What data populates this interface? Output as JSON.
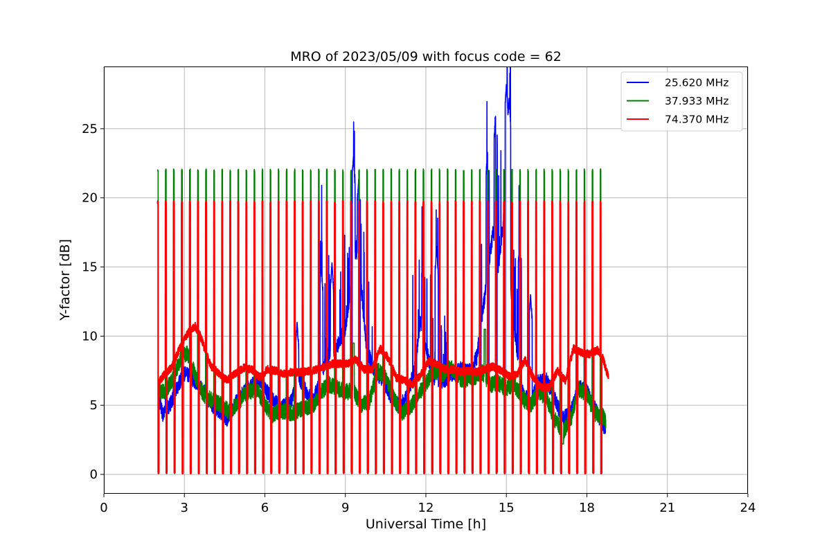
{
  "chart_data": {
    "type": "line",
    "title": "MRO of 2023/05/09 with focus code = 62",
    "xlabel": "Universal Time [h]",
    "ylabel": "Y-factor [dB]",
    "xlim": [
      0,
      24
    ],
    "ylim": [
      -1.4,
      29.5
    ],
    "xticks": [
      0,
      3,
      6,
      9,
      12,
      15,
      18,
      21,
      24
    ],
    "yticks": [
      0,
      5,
      10,
      15,
      20,
      25
    ],
    "grid": true,
    "legend_position": "top-right",
    "calibration": {
      "start": 2.0,
      "end": 18.5,
      "count": 56,
      "peak_values": {
        "25.620 MHz": 19.8,
        "37.933 MHz": 22.1,
        "74.370 MHz": 19.8
      }
    },
    "series": [
      {
        "name": "25.620 MHz",
        "color": "#0000ff",
        "x": [
          2.0,
          2.2,
          2.5,
          2.8,
          3.0,
          3.2,
          3.5,
          3.8,
          4.0,
          4.3,
          4.6,
          5.0,
          5.4,
          5.8,
          6.2,
          6.6,
          7.0,
          7.2,
          7.5,
          7.8,
          8.1,
          8.4,
          8.7,
          9.0,
          9.2,
          9.4,
          9.6,
          9.8,
          10.1,
          10.4,
          10.7,
          11.0,
          11.3,
          11.6,
          11.8,
          12.0,
          12.2,
          12.4,
          12.7,
          13.0,
          13.3,
          13.6,
          13.9,
          14.1,
          14.3,
          14.5,
          14.7,
          14.9,
          15.1,
          15.3,
          15.6,
          15.9,
          16.2,
          16.5,
          16.8,
          17.1,
          17.4,
          17.7,
          18.0,
          18.3,
          18.6,
          18.7
        ],
        "values": [
          5.8,
          4.3,
          5.2,
          6.6,
          7.3,
          7.1,
          6.5,
          5.8,
          5.0,
          4.6,
          4.0,
          5.5,
          6.3,
          6.9,
          5.6,
          4.8,
          5.3,
          7.2,
          6.1,
          5.3,
          7.2,
          8.8,
          9.3,
          10.6,
          13.5,
          16.5,
          13.2,
          9.0,
          7.4,
          6.9,
          5.6,
          4.9,
          5.6,
          7.8,
          11.2,
          9.2,
          7.6,
          6.6,
          6.8,
          7.3,
          7.6,
          7.4,
          8.5,
          11.5,
          14.5,
          17.5,
          15.0,
          18.5,
          15.0,
          10.5,
          6.0,
          5.0,
          6.8,
          6.8,
          5.5,
          4.0,
          4.5,
          6.3,
          6.0,
          4.8,
          3.5,
          3.5
        ],
        "spikes": [
          [
            7.2,
            11.0
          ],
          [
            8.1,
            15.2
          ],
          [
            8.5,
            15.3
          ],
          [
            9.3,
            23.0
          ],
          [
            9.5,
            21.5
          ],
          [
            11.9,
            16.0
          ],
          [
            12.4,
            16.5
          ],
          [
            14.3,
            23.4
          ],
          [
            14.6,
            26.0
          ],
          [
            15.0,
            28.2
          ],
          [
            15.1,
            27.2
          ],
          [
            15.5,
            17.0
          ],
          [
            15.9,
            13.0
          ]
        ]
      },
      {
        "name": "37.933 MHz",
        "color": "#008000",
        "x": [
          2.0,
          2.3,
          2.6,
          2.9,
          3.1,
          3.3,
          3.5,
          3.8,
          4.1,
          4.4,
          4.7,
          5.0,
          5.3,
          5.7,
          6.0,
          6.3,
          6.6,
          7.0,
          7.4,
          7.8,
          8.1,
          8.4,
          8.7,
          9.0,
          9.3,
          9.6,
          9.9,
          10.2,
          10.5,
          10.8,
          11.1,
          11.4,
          11.7,
          12.0,
          12.3,
          12.6,
          12.9,
          13.2,
          13.5,
          13.8,
          14.1,
          14.4,
          14.7,
          15.0,
          15.3,
          15.6,
          15.9,
          16.2,
          16.5,
          16.8,
          17.1,
          17.4,
          17.7,
          18.0,
          18.3,
          18.6,
          18.7
        ],
        "values": [
          6.0,
          6.0,
          7.0,
          8.6,
          8.8,
          7.8,
          6.5,
          5.6,
          5.3,
          5.0,
          4.5,
          5.2,
          5.9,
          6.2,
          5.0,
          4.3,
          4.6,
          4.4,
          4.8,
          5.0,
          6.0,
          6.5,
          6.2,
          6.0,
          6.0,
          5.0,
          5.3,
          7.5,
          7.0,
          5.5,
          4.5,
          4.8,
          5.8,
          6.6,
          7.5,
          7.2,
          7.8,
          7.0,
          6.8,
          7.0,
          7.4,
          6.5,
          6.6,
          6.2,
          6.5,
          5.5,
          5.0,
          6.0,
          5.5,
          4.0,
          3.0,
          4.0,
          6.2,
          5.8,
          4.4,
          4.2,
          3.7
        ],
        "spikes": [
          [
            9.3,
            9.5
          ],
          [
            14.2,
            10.5
          ],
          [
            17.1,
            2.2
          ]
        ]
      },
      {
        "name": "74.370 MHz",
        "color": "#ff0000",
        "x": [
          2.0,
          2.2,
          2.5,
          2.8,
          3.0,
          3.2,
          3.4,
          3.6,
          3.8,
          4.0,
          4.3,
          4.6,
          4.9,
          5.2,
          5.5,
          5.8,
          6.1,
          6.4,
          6.7,
          7.0,
          7.4,
          7.8,
          8.2,
          8.5,
          8.8,
          9.1,
          9.4,
          9.7,
          10.0,
          10.3,
          10.6,
          10.9,
          11.2,
          11.5,
          11.8,
          12.1,
          12.4,
          12.7,
          13.0,
          13.3,
          13.6,
          13.9,
          14.2,
          14.5,
          14.8,
          15.1,
          15.4,
          15.7,
          16.0,
          16.3,
          16.6,
          16.9,
          17.2,
          17.5,
          17.8,
          18.1,
          18.4,
          18.6,
          18.8
        ],
        "values": [
          6.5,
          7.1,
          7.7,
          9.0,
          9.8,
          10.4,
          10.7,
          10.0,
          8.8,
          7.8,
          7.3,
          6.8,
          7.3,
          7.7,
          7.6,
          7.0,
          7.6,
          7.5,
          7.3,
          7.4,
          7.4,
          7.5,
          7.8,
          8.0,
          8.0,
          8.0,
          8.3,
          7.6,
          7.6,
          9.1,
          8.4,
          7.0,
          6.8,
          6.5,
          7.2,
          8.2,
          8.0,
          7.6,
          7.6,
          7.4,
          7.5,
          7.4,
          7.6,
          7.8,
          7.5,
          7.1,
          7.2,
          8.3,
          7.0,
          6.3,
          6.3,
          7.5,
          6.8,
          9.1,
          8.8,
          8.7,
          9.0,
          8.4,
          7.0
        ],
        "spikes": []
      }
    ]
  }
}
